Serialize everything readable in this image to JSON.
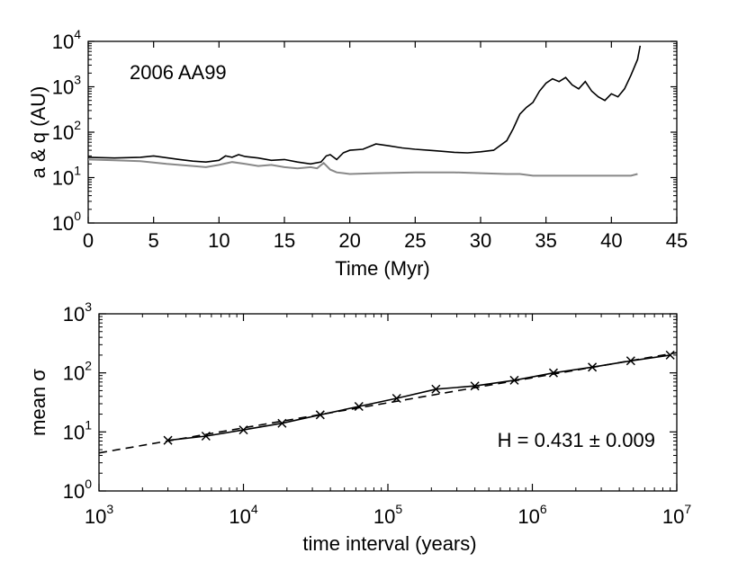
{
  "chart_data": [
    {
      "type": "line",
      "panel": "top",
      "title": "2006 AA99",
      "xlabel": "Time (Myr)",
      "ylabel": "a & q (AU)",
      "yscale": "log",
      "xlim": [
        0,
        45
      ],
      "ylim": [
        1,
        10000
      ],
      "xticks": [
        0,
        5,
        10,
        15,
        20,
        25,
        30,
        35,
        40,
        45
      ],
      "yticks": [
        {
          "value": 1,
          "base": "10",
          "exp": "0"
        },
        {
          "value": 10,
          "base": "10",
          "exp": "1"
        },
        {
          "value": 100,
          "base": "10",
          "exp": "2"
        },
        {
          "value": 1000,
          "base": "10",
          "exp": "3"
        },
        {
          "value": 10000,
          "base": "10",
          "exp": "4"
        }
      ],
      "series": [
        {
          "name": "a",
          "color": "#000000",
          "x": [
            0,
            2,
            4,
            5,
            7,
            8,
            9,
            10,
            10.5,
            11,
            11.5,
            12,
            13,
            14,
            15,
            16,
            17,
            17.8,
            18.2,
            18.5,
            19,
            19.5,
            20,
            21,
            22,
            23,
            24,
            25,
            26,
            27,
            28,
            29,
            30,
            31,
            32,
            32.5,
            33,
            33.5,
            34,
            34.5,
            35,
            35.5,
            36,
            36.5,
            37,
            37.5,
            38,
            38.5,
            39,
            39.5,
            40,
            40.5,
            41,
            41.5,
            42,
            42.2
          ],
          "y": [
            28,
            27,
            28,
            30,
            25,
            23,
            22,
            24,
            30,
            28,
            32,
            29,
            27,
            24,
            25,
            22,
            20,
            22,
            30,
            32,
            25,
            35,
            40,
            42,
            55,
            50,
            45,
            42,
            40,
            38,
            36,
            35,
            37,
            40,
            65,
            120,
            250,
            350,
            450,
            800,
            1200,
            1500,
            1300,
            1600,
            1100,
            900,
            1300,
            800,
            600,
            500,
            700,
            600,
            900,
            1800,
            4000,
            8000
          ]
        },
        {
          "name": "q",
          "color": "#888888",
          "x": [
            0,
            2,
            4,
            6,
            8,
            9,
            10,
            11,
            12,
            13,
            14,
            15,
            16,
            17,
            17.5,
            18,
            18.5,
            19,
            20,
            22,
            25,
            28,
            30,
            32,
            33,
            34,
            35,
            36,
            37,
            38,
            39,
            40,
            41,
            41.5,
            42
          ],
          "y": [
            25,
            24,
            23,
            20,
            18,
            17,
            19,
            22,
            20,
            18,
            19,
            17,
            16,
            17,
            16,
            21,
            15,
            13,
            12,
            12.5,
            13,
            13,
            12.5,
            12,
            12,
            11,
            11,
            11,
            11,
            11,
            11,
            11,
            11,
            11,
            12
          ]
        }
      ]
    },
    {
      "type": "line",
      "panel": "bottom",
      "xlabel": "time interval (years)",
      "ylabel": "mean σ",
      "xscale": "log",
      "yscale": "log",
      "xlim": [
        1000,
        10000000
      ],
      "ylim": [
        1,
        1000
      ],
      "annotation": "H = 0.431 ± 0.009",
      "xticks": [
        {
          "value": 1000,
          "base": "10",
          "exp": "3"
        },
        {
          "value": 10000,
          "base": "10",
          "exp": "4"
        },
        {
          "value": 100000,
          "base": "10",
          "exp": "5"
        },
        {
          "value": 1000000,
          "base": "10",
          "exp": "6"
        },
        {
          "value": 10000000,
          "base": "10",
          "exp": "7"
        }
      ],
      "yticks": [
        {
          "value": 1,
          "base": "10",
          "exp": "0"
        },
        {
          "value": 10,
          "base": "10",
          "exp": "1"
        },
        {
          "value": 100,
          "base": "10",
          "exp": "2"
        },
        {
          "value": 1000,
          "base": "10",
          "exp": "3"
        }
      ],
      "series": [
        {
          "name": "mean sigma",
          "style": "solid-with-x-markers",
          "x": [
            3000,
            5500,
            10000,
            18500,
            34000,
            63000,
            115000,
            215000,
            400000,
            750000,
            1400000,
            2600000,
            4800000,
            9000000
          ],
          "y": [
            7.2,
            8.5,
            10.8,
            14,
            19.5,
            27,
            37,
            53,
            60,
            75,
            100,
            125,
            160,
            200
          ]
        },
        {
          "name": "fit",
          "style": "dashed",
          "x": [
            1000,
            10000000
          ],
          "y": [
            4.4,
            220
          ]
        }
      ]
    }
  ]
}
